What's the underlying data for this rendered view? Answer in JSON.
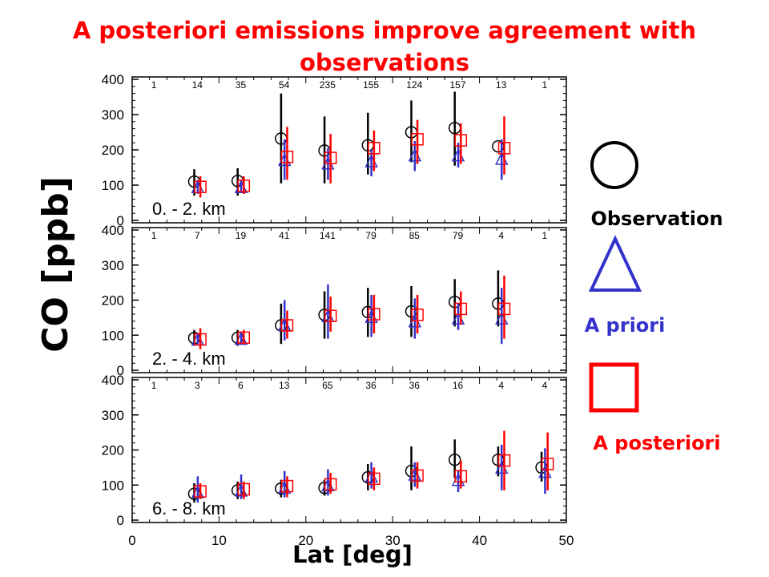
{
  "title": "A posteriori emissions improve agreement with observations",
  "colors": {
    "observation": "#000000",
    "a_priori": "#3333cc",
    "a_posteriori": "#ff0000",
    "title": "#ff0000"
  },
  "legend": {
    "observation_label": "Observation",
    "a_priori_label": "A priori",
    "a_posteriori_label": "A posteriori",
    "observation_symbol": "circle",
    "a_priori_symbol": "triangle",
    "a_posteriori_symbol": "square"
  },
  "chart_data": {
    "type": "scatter",
    "xlabel": "Lat [deg]",
    "ylabel": "CO [ppb]",
    "xlim": [
      0,
      50
    ],
    "xticks": [
      0,
      10,
      20,
      30,
      40,
      50
    ],
    "ylim": [
      0,
      400
    ],
    "yticks": [
      0,
      100,
      200,
      300,
      400
    ],
    "latitudes": [
      2.5,
      7.5,
      12.5,
      17.5,
      22.5,
      27.5,
      32.5,
      37.5,
      42.5,
      47.5
    ],
    "panels": [
      {
        "label": "0. -  2. km",
        "counts": [
          "1",
          "14",
          "35",
          "54",
          "235",
          "155",
          "124",
          "157",
          "13",
          "1"
        ],
        "series": [
          {
            "name": "Observation",
            "values": [
              null,
              110,
              112,
              232,
              198,
              213,
              250,
              262,
              210,
              null
            ],
            "err_low": [
              null,
              70,
              70,
              105,
              105,
              130,
              165,
              155,
              null,
              null
            ],
            "err_high": [
              null,
              145,
              148,
              360,
              295,
              305,
              340,
              365,
              null,
              null
            ]
          },
          {
            "name": "A priori",
            "values": [
              null,
              95,
              95,
              172,
              162,
              168,
              185,
              185,
              175,
              null
            ],
            "err_low": [
              null,
              75,
              80,
              115,
              115,
              125,
              140,
              150,
              115,
              null
            ],
            "err_high": [
              null,
              115,
              115,
              230,
              205,
              200,
              225,
              220,
              230,
              null
            ]
          },
          {
            "name": "A posteriori",
            "values": [
              null,
              95,
              98,
              180,
              177,
              205,
              230,
              227,
              205,
              null
            ],
            "err_low": [
              null,
              65,
              75,
              115,
              105,
              140,
              160,
              160,
              130,
              null
            ],
            "err_high": [
              null,
              125,
              125,
              265,
              245,
              255,
              285,
              275,
              295,
              null
            ]
          }
        ]
      },
      {
        "label": "2. -  4. km",
        "counts": [
          "1",
          "7",
          "19",
          "41",
          "141",
          "79",
          "85",
          "79",
          "4",
          "1"
        ],
        "series": [
          {
            "name": "Observation",
            "values": [
              null,
              92,
              93,
              128,
              158,
              166,
              168,
              195,
              190,
              null
            ],
            "err_low": [
              null,
              70,
              70,
              75,
              90,
              95,
              95,
              125,
              125,
              null
            ],
            "err_high": [
              null,
              115,
              115,
              190,
              225,
              235,
              240,
              260,
              285,
              null
            ]
          },
          {
            "name": "A priori",
            "values": [
              null,
              88,
              90,
              130,
              155,
              153,
              140,
              148,
              148,
              null
            ],
            "err_low": [
              null,
              72,
              75,
              85,
              90,
              95,
              90,
              115,
              75,
              null
            ],
            "err_high": [
              null,
              105,
              110,
              200,
              245,
              215,
              205,
              190,
              235,
              null
            ]
          },
          {
            "name": "A posteriori",
            "values": [
              null,
              88,
              93,
              128,
              155,
              160,
              158,
              175,
              175,
              null
            ],
            "err_low": [
              null,
              60,
              75,
              90,
              110,
              105,
              105,
              130,
              90,
              null
            ],
            "err_high": [
              null,
              120,
              115,
              170,
              210,
              215,
              215,
              225,
              270,
              null
            ]
          }
        ]
      },
      {
        "label": "6. -  8. km",
        "counts": [
          "1",
          "3",
          "6",
          "13",
          "65",
          "36",
          "36",
          "16",
          "4",
          "4"
        ],
        "series": [
          {
            "name": "Observation",
            "values": [
              null,
              75,
              85,
              90,
              92,
              122,
              140,
              172,
              172,
              150
            ],
            "err_low": [
              null,
              50,
              60,
              65,
              70,
              85,
              85,
              120,
              125,
              110
            ],
            "err_high": [
              null,
              105,
              110,
              115,
              115,
              160,
              210,
              230,
              210,
              195
            ]
          },
          {
            "name": "A priori",
            "values": [
              null,
              80,
              85,
              93,
              100,
              125,
              130,
              115,
              150,
              138
            ],
            "err_low": [
              null,
              50,
              60,
              65,
              70,
              90,
              95,
              80,
              85,
              75
            ],
            "err_high": [
              null,
              125,
              130,
              140,
              145,
              165,
              165,
              140,
              215,
              205
            ]
          },
          {
            "name": "A posteriori",
            "values": [
              null,
              82,
              88,
              97,
              102,
              118,
              127,
              125,
              170,
              160
            ],
            "err_low": [
              null,
              60,
              60,
              65,
              75,
              85,
              90,
              90,
              85,
              85
            ],
            "err_high": [
              null,
              105,
              110,
              125,
              135,
              150,
              165,
              170,
              255,
              250
            ]
          }
        ]
      }
    ]
  }
}
